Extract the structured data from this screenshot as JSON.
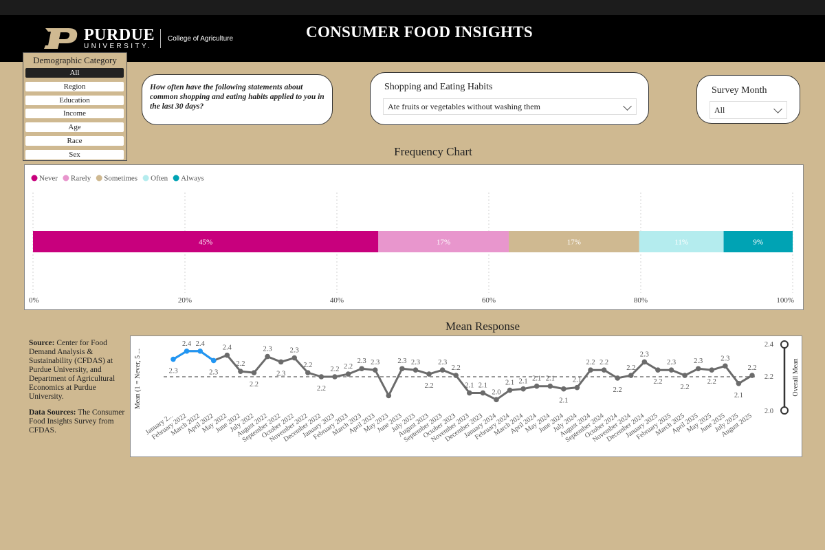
{
  "header": {
    "brand_name": "PURDUE",
    "brand_sub": "UNIVERSITY.",
    "college": "College of Agriculture",
    "title": "CONSUMER FOOD INSIGHTS"
  },
  "demographic": {
    "title": "Demographic Category",
    "items": [
      "All",
      "Region",
      "Education",
      "Income",
      "Age",
      "Race",
      "Sex"
    ],
    "selected": "All"
  },
  "question": "How often have the following statements about common shopping and eating habits applied to you in the last 30 days?",
  "habits": {
    "label": "Shopping and Eating Habits",
    "selected": "Ate fruits or vegetables without washing them"
  },
  "survey_month": {
    "label": "Survey Month",
    "selected": "All"
  },
  "colors": {
    "page_bg": "#cfb991",
    "never": "#c8007d",
    "rarely": "#e896cd",
    "sometimes": "#cfb991",
    "often": "#b4ecee",
    "always": "#00a3b4",
    "line": "#6b6b6b",
    "highlight": "#2196f3"
  },
  "chart_data": [
    {
      "type": "bar",
      "title": "Frequency Chart",
      "orientation": "horizontal-stacked-100",
      "legend_position": "top-left",
      "series": [
        {
          "name": "Never",
          "value": 45,
          "label": "45%"
        },
        {
          "name": "Rarely",
          "value": 17,
          "label": "17%"
        },
        {
          "name": "Sometimes",
          "value": 17,
          "label": "17%"
        },
        {
          "name": "Often",
          "value": 11,
          "label": "11%"
        },
        {
          "name": "Always",
          "value": 9,
          "label": "9%"
        }
      ],
      "x_ticks": [
        "0%",
        "20%",
        "40%",
        "60%",
        "80%",
        "100%"
      ],
      "xlim": [
        0,
        100
      ],
      "grid": true
    },
    {
      "type": "line",
      "title": "Mean Response",
      "ylabel": "Mean (1 = Never, 5 ...",
      "y2label": "Overall Mean",
      "slider_ticks": [
        "2.4",
        "2.2",
        "2.0"
      ],
      "reference_line": 2.2,
      "ylim": [
        1.95,
        2.45
      ],
      "x": [
        "January 2...",
        "February 2022",
        "March 2022",
        "April 2022",
        "May 2022",
        "June 2022",
        "July 2022",
        "August 2022",
        "September 2022",
        "October 2022",
        "November 2022",
        "December 2022",
        "January 2023",
        "February 2023",
        "March 2023",
        "April 2023",
        "May 2023",
        "June 2023",
        "July 2023",
        "August 2023",
        "September 2023",
        "October 2023",
        "November 2023",
        "December 2023",
        "January 2024",
        "February 2024",
        "March 2024",
        "April 2024",
        "May 2024",
        "June 2024",
        "July 2024",
        "August 2024",
        "September 2024",
        "October 2024",
        "November 2024",
        "December 2024",
        "January 2025",
        "February 2025",
        "March 2025",
        "April 2025",
        "May 2025",
        "June 2025",
        "July 2025",
        "August 2025"
      ],
      "values": [
        2.33,
        2.39,
        2.39,
        2.32,
        2.36,
        2.24,
        2.23,
        2.35,
        2.31,
        2.34,
        2.23,
        2.2,
        2.2,
        2.22,
        2.26,
        2.25,
        2.06,
        2.26,
        2.25,
        2.22,
        2.25,
        2.21,
        2.08,
        2.08,
        2.03,
        2.1,
        2.11,
        2.13,
        2.13,
        2.11,
        2.12,
        2.25,
        2.25,
        2.19,
        2.21,
        2.31,
        2.25,
        2.25,
        2.21,
        2.26,
        2.25,
        2.28,
        2.15,
        2.21
      ],
      "labels": [
        "2.3",
        "2.4",
        "2.4",
        "2.3",
        "2.4",
        "2.2",
        "2.2",
        "2.3",
        "2.3",
        "2.3",
        "2.2",
        "2.2",
        "2.2",
        "2.2",
        "2.3",
        "2.3",
        "",
        "2.3",
        "2.3",
        "2.2",
        "2.3",
        "2.2",
        "2.1",
        "2.1",
        "2.0",
        "2.1",
        "2.1",
        "2.1",
        "2.1",
        "2.1",
        "2.1",
        "2.2",
        "2.2",
        "2.2",
        "2.2",
        "2.3",
        "2.2",
        "2.3",
        "2.2",
        "2.3",
        "2.2",
        "2.3",
        "2.1",
        "2.2"
      ],
      "label_below": [
        true,
        false,
        false,
        true,
        false,
        false,
        true,
        false,
        true,
        false,
        false,
        true,
        false,
        false,
        false,
        false,
        false,
        false,
        false,
        true,
        false,
        false,
        false,
        false,
        false,
        false,
        false,
        false,
        false,
        true,
        false,
        false,
        false,
        true,
        false,
        false,
        true,
        false,
        true,
        false,
        true,
        false,
        true,
        false
      ],
      "highlighted": [
        0,
        1,
        2,
        3
      ],
      "grid": false
    }
  ],
  "source": {
    "source_label": "Source:",
    "source_text": "Center for Food Demand Analysis & Sustainability (CFDAS) at Purdue University, and Department of Agricultural Economics at Purdue University.",
    "data_label": "Data Sources:",
    "data_text": "The Consumer Food Insights Survey from CFDAS."
  }
}
